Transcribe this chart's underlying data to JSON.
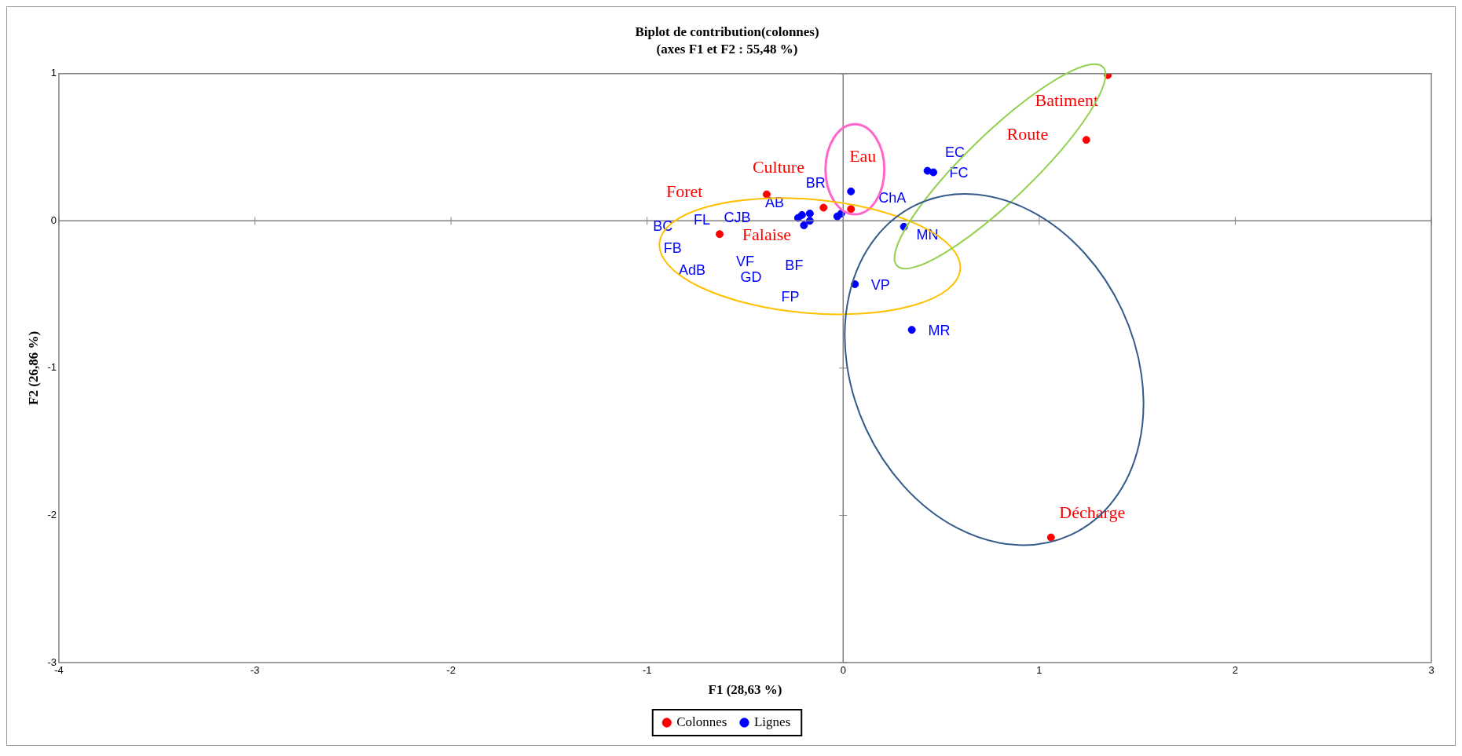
{
  "chart_data": {
    "type": "scatter",
    "title": "Biplot de contribution(colonnes)",
    "subtitle": "(axes F1 et F2 : 55,48 %)",
    "xlabel": "F1 (28,63 %)",
    "ylabel": "F2 (26,86 %)",
    "xlim": [
      -4,
      3
    ],
    "xticks": [
      -4,
      -3,
      -2,
      -1,
      0,
      1,
      2,
      3
    ],
    "ylim": [
      -3,
      1
    ],
    "yticks": [
      -3,
      -2,
      -1,
      0,
      1
    ],
    "marker": "circle",
    "legend": "bottom",
    "series": [
      {
        "name": "Colonnes",
        "color": "#ff0000",
        "x": [
          1.35,
          1.24,
          1.06,
          -0.39,
          -0.1,
          0.04,
          -0.63
        ],
        "values": [
          0.99,
          0.55,
          -2.15,
          0.18,
          0.09,
          0.08,
          -0.09
        ]
      },
      {
        "name": "Lignes",
        "color": "#0000ff",
        "x": [
          0.04,
          0.43,
          0.46,
          0.31,
          0.06,
          0.35,
          -0.23,
          -0.21,
          -0.17,
          -0.17,
          -0.2,
          -0.03,
          -0.01
        ],
        "values": [
          0.2,
          0.34,
          0.33,
          -0.04,
          -0.43,
          -0.74,
          0.02,
          0.04,
          0.05,
          0,
          -0.03,
          0.03,
          0.05
        ]
      }
    ],
    "annotations": [
      "Batiment",
      "Route",
      "Décharge",
      "Culture",
      "Foret",
      "Eau",
      "Falaise",
      "BR",
      "AB",
      "CJB",
      "FL",
      "BC",
      "FB",
      "AdB",
      "VF",
      "GD",
      "BF",
      "FP",
      "ChA",
      "EC",
      "FC",
      "MN",
      "VP",
      "MR"
    ]
  }
}
